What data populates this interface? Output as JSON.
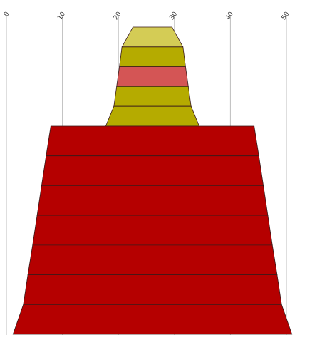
{
  "chart_data": {
    "type": "funnel",
    "title": "",
    "xlabel": "",
    "ylabel": "",
    "axis_ticks": [
      "0",
      "10",
      "20",
      "30",
      "40",
      "50"
    ],
    "xlim": [
      0,
      50
    ],
    "grid": true,
    "upper_block": {
      "segments": [
        {
          "top_width": 7.0,
          "bottom_width": 10.9,
          "color": "#d4cc55"
        },
        {
          "top_width": 10.9,
          "bottom_width": 11.8,
          "color": "#b5ab00"
        },
        {
          "top_width": 11.8,
          "bottom_width": 12.8,
          "color": "#d45555"
        },
        {
          "top_width": 12.8,
          "bottom_width": 13.8,
          "color": "#b5ab00"
        },
        {
          "top_width": 13.8,
          "bottom_width": 16.7,
          "color": "#b5ab00"
        }
      ]
    },
    "lower_block": {
      "segments": [
        {
          "top_width": 36.3,
          "bottom_width": 38.0,
          "color": "#b50000"
        },
        {
          "top_width": 38.0,
          "bottom_width": 39.6,
          "color": "#b50000"
        },
        {
          "top_width": 39.6,
          "bottom_width": 41.2,
          "color": "#b50000"
        },
        {
          "top_width": 41.2,
          "bottom_width": 42.8,
          "color": "#b50000"
        },
        {
          "top_width": 42.8,
          "bottom_width": 44.5,
          "color": "#b50000"
        },
        {
          "top_width": 44.5,
          "bottom_width": 46.1,
          "color": "#b50000"
        },
        {
          "top_width": 46.1,
          "bottom_width": 49.8,
          "color": "#b50000"
        }
      ]
    }
  }
}
